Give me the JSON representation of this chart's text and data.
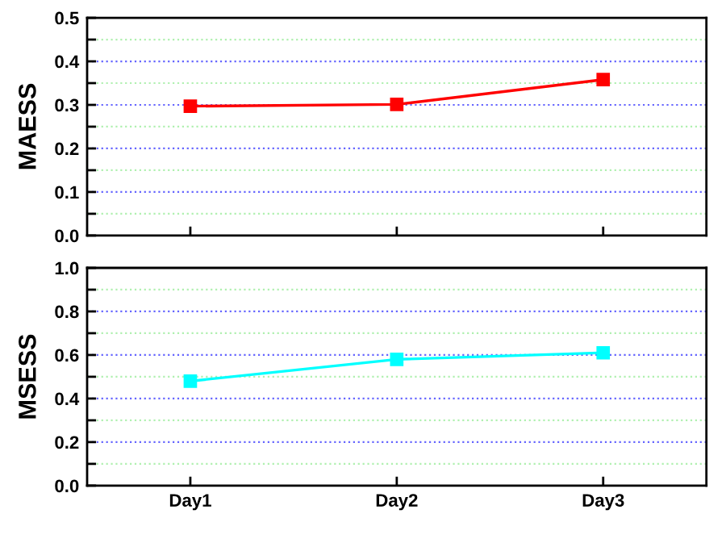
{
  "chart_data": [
    {
      "type": "line",
      "categories": [
        null,
        null,
        null
      ],
      "ylabel": "MAESS",
      "series": [
        {
          "color": "#ff0000",
          "values": [
            0.297,
            0.301,
            0.358
          ]
        }
      ],
      "ylim": [
        0,
        0.5
      ],
      "yticks": [
        {
          "value": 0,
          "label": "0.0"
        },
        {
          "value": 0.05,
          "label": null
        },
        0.1,
        {
          "value": 0.15,
          "label": null
        },
        0.2,
        {
          "value": 0.25,
          "label": null
        },
        0.3,
        {
          "value": 0.35,
          "label": null
        },
        0.4,
        {
          "value": 0.45,
          "label": null
        },
        0.5
      ],
      "grid": "y",
      "marker": "square",
      "line_style": "solid"
    },
    {
      "type": "line",
      "categories": [
        "Day1",
        "Day2",
        "Day3"
      ],
      "ylabel": "MSESS",
      "series": [
        {
          "color": "#00ffff",
          "values": [
            0.48,
            0.58,
            0.61
          ]
        }
      ],
      "ylim": [
        0,
        1.0
      ],
      "yticks": [
        {
          "value": 0,
          "label": "0.0"
        },
        {
          "value": 0.1,
          "label": null
        },
        0.2,
        {
          "value": 0.3,
          "label": null
        },
        0.4,
        {
          "value": 0.5,
          "label": null
        },
        0.6,
        {
          "value": 0.7,
          "label": null
        },
        0.8,
        {
          "value": 0.9,
          "label": null
        },
        {
          "value": 1,
          "label": "1.0"
        }
      ],
      "grid": "y",
      "marker": "square",
      "line_style": "solid"
    }
  ]
}
